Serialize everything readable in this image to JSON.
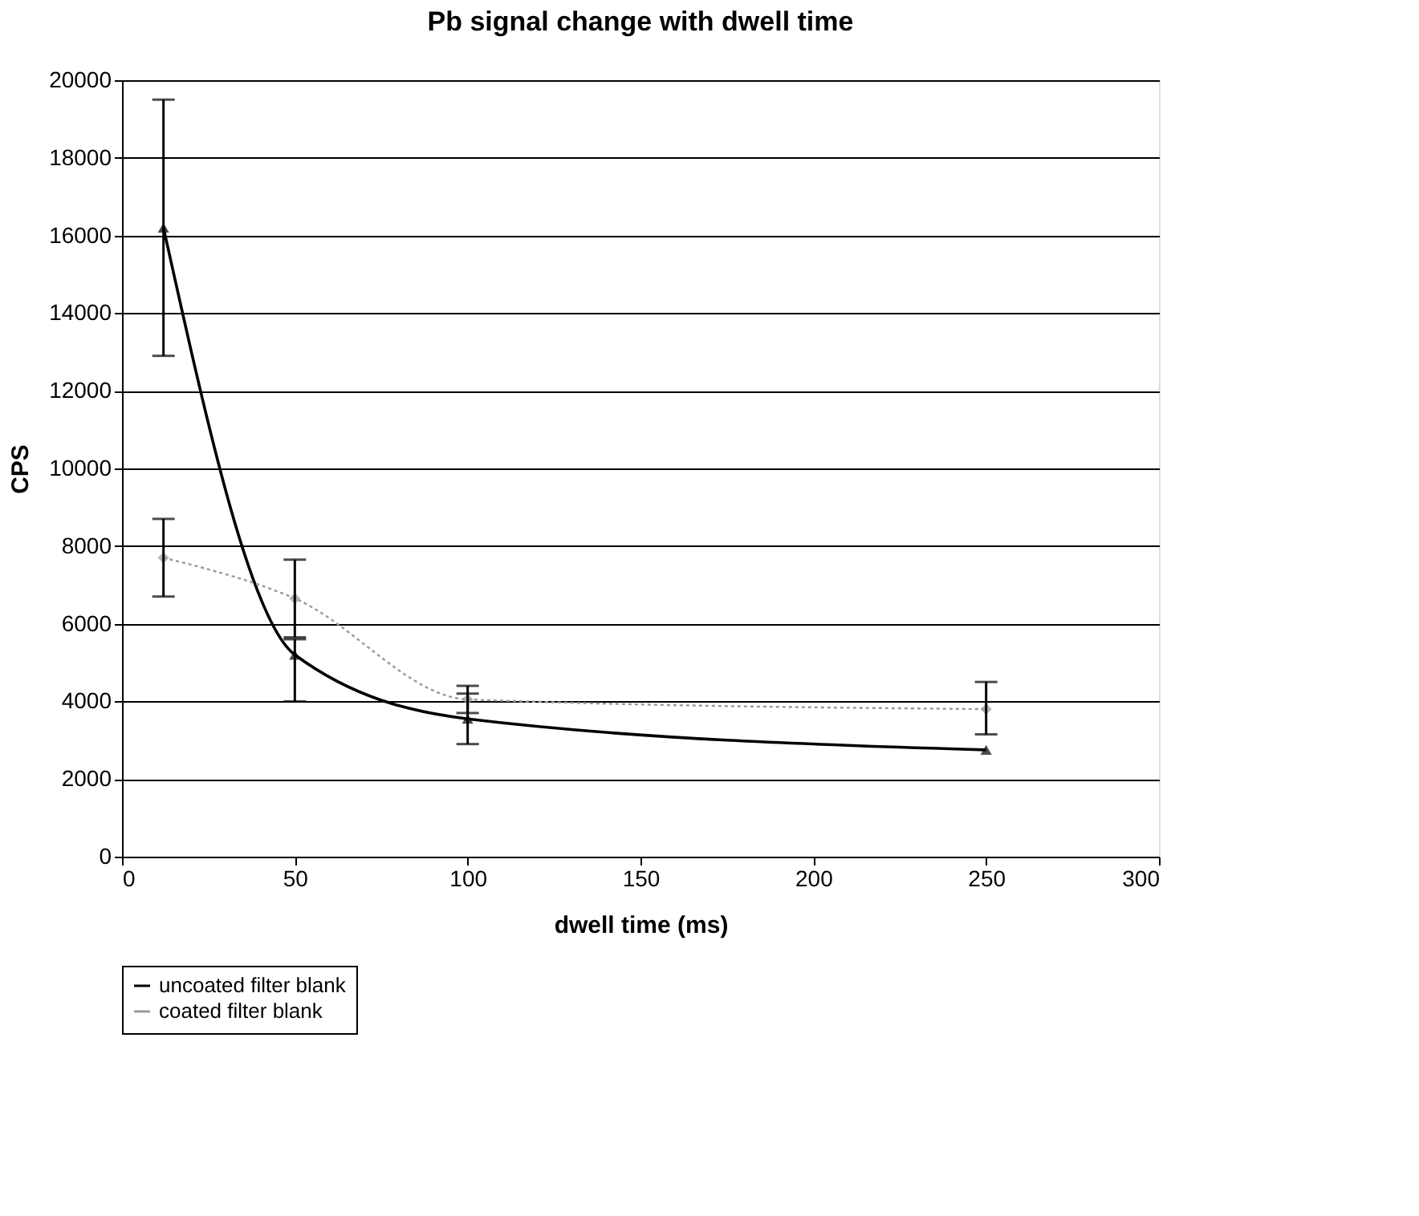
{
  "chart_data": {
    "type": "line",
    "title": "Pb signal change with dwell time",
    "xlabel": "dwell time (ms)",
    "ylabel": "CPS",
    "x": [
      12,
      50,
      100,
      250
    ],
    "series": [
      {
        "name": "uncoated filter blank",
        "color": "#000000",
        "marker": "triangle",
        "line_style": "solid",
        "values": [
          16200,
          5200,
          3550,
          2750
        ],
        "errors": [
          [
            12900,
            19500
          ],
          [
            4000,
            5600
          ],
          [
            2900,
            4200
          ],
          null
        ]
      },
      {
        "name": "coated filter blank",
        "color": "#999999",
        "marker": "diamond",
        "line_style": "dotted",
        "values": [
          7700,
          6650,
          4050,
          3800
        ],
        "errors": [
          [
            6700,
            8700
          ],
          [
            5650,
            7650
          ],
          [
            3700,
            4400
          ],
          [
            3150,
            4500
          ]
        ]
      }
    ],
    "xlim": [
      0,
      300
    ],
    "xticks": [
      0,
      50,
      100,
      150,
      200,
      250,
      300
    ],
    "ylim": [
      0,
      20000
    ],
    "yticks": [
      0,
      2000,
      4000,
      6000,
      8000,
      10000,
      12000,
      14000,
      16000,
      18000,
      20000
    ],
    "grid": "y",
    "legend": "bottom"
  }
}
